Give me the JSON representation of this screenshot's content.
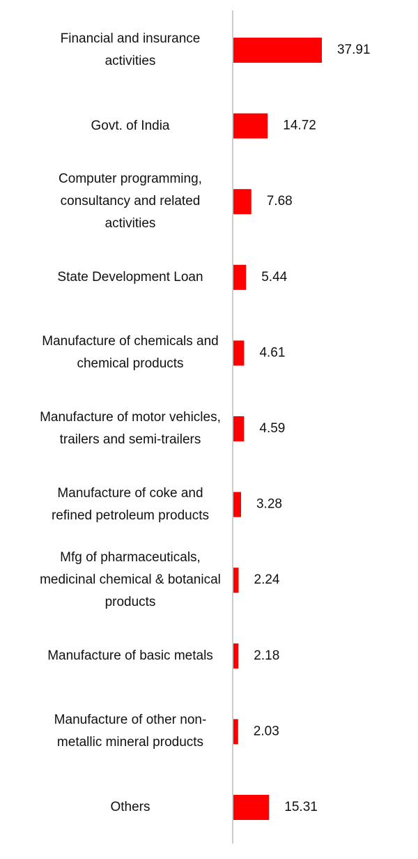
{
  "chart_data": {
    "type": "bar",
    "orientation": "horizontal",
    "color": "#ff0000",
    "categories": [
      "Financial and insurance activities",
      "Govt. of India",
      "Computer programming, consultancy and related activities",
      "State Development Loan",
      "Manufacture of chemicals and chemical products",
      "Manufacture of motor vehicles, trailers and semi-trailers",
      "Manufacture of coke and refined petroleum products",
      "Mfg of pharmaceuticals, medicinal chemical & botanical products",
      "Manufacture of basic metals",
      "Manufacture of other non-metallic mineral products",
      "Others"
    ],
    "values": [
      37.91,
      14.72,
      7.68,
      5.44,
      4.61,
      4.59,
      3.28,
      2.24,
      2.18,
      2.03,
      15.31
    ]
  }
}
